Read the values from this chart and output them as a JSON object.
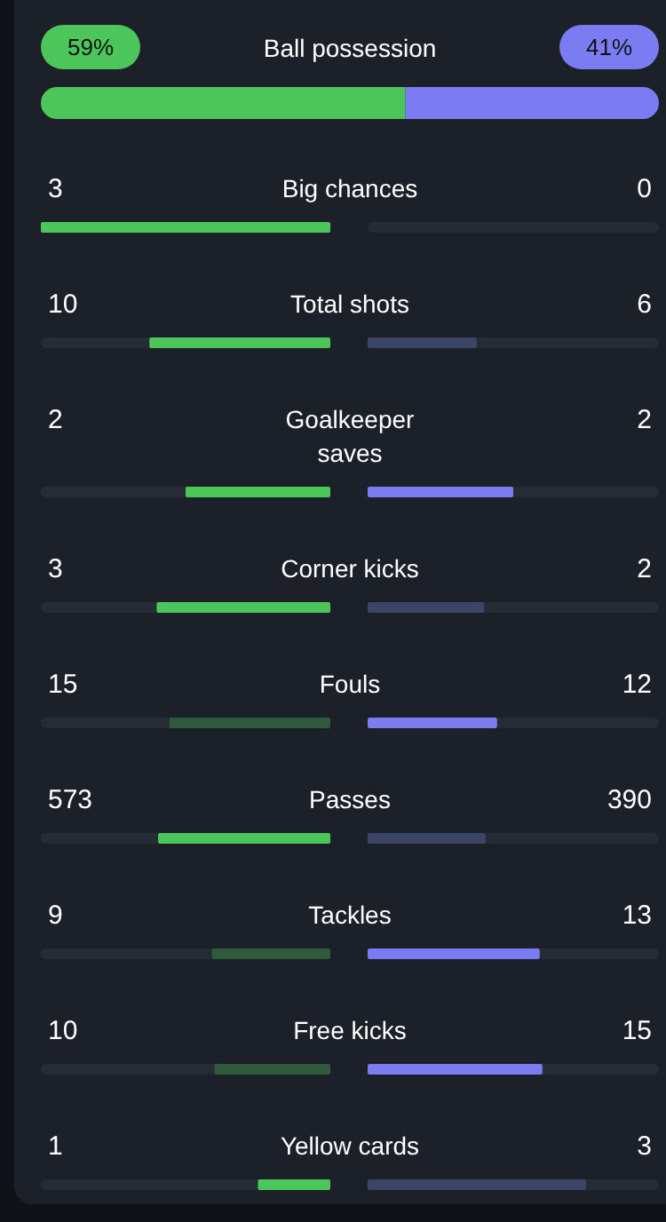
{
  "chart_data": {
    "type": "other",
    "data_labels": true,
    "categories": [
      "Ball possession",
      "Big chances",
      "Total shots",
      "Goalkeeper saves",
      "Corner kicks",
      "Fouls",
      "Passes",
      "Tackles",
      "Free kicks",
      "Yellow cards"
    ],
    "series": [
      {
        "values": [
          59,
          3,
          10,
          2,
          3,
          15,
          573,
          9,
          10,
          1
        ],
        "value_labels": [
          "59%",
          "3",
          "10",
          "2",
          "3",
          "15",
          "573",
          "9",
          "10",
          "1"
        ],
        "colors": [
          "#4cc55a",
          "#4cc55a",
          "#4cc55a",
          "#4cc55a",
          "#4cc55a",
          "#2f5a3c",
          "#4cc55a",
          "#2f5a3c",
          "#2f5a3c",
          "#4cc55a"
        ]
      },
      {
        "values": [
          41,
          0,
          6,
          2,
          2,
          12,
          390,
          13,
          15,
          3
        ],
        "value_labels": [
          "41%",
          "0",
          "6",
          "2",
          "2",
          "12",
          "390",
          "13",
          "15",
          "3"
        ],
        "colors": [
          "#7b7cf2",
          "#3c4566",
          "#3c4566",
          "#7b7cf2",
          "#3c4566",
          "#7b7cf2",
          "#3c4566",
          "#7b7cf2",
          "#7b7cf2",
          "#3c4566"
        ]
      }
    ]
  }
}
